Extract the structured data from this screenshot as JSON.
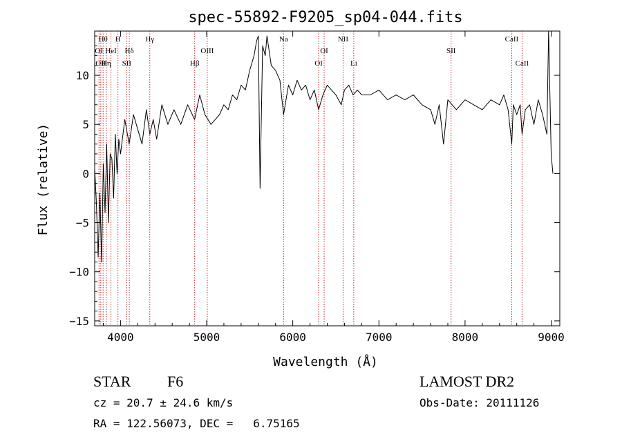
{
  "chart_data": {
    "type": "line",
    "title": "spec-55892-F9205_sp04-044.fits",
    "xlabel": "Wavelength (Å)",
    "ylabel": "Flux (relative)",
    "xlim": [
      3700,
      9100
    ],
    "ylim": [
      -15.5,
      14.5
    ],
    "xticks": [
      4000,
      5000,
      6000,
      7000,
      8000,
      9000
    ],
    "yticks": [
      -15,
      -10,
      -5,
      0,
      5,
      10
    ],
    "xtick_labels": [
      "4000",
      "5000",
      "6000",
      "7000",
      "8000",
      "9000"
    ],
    "ytick_labels": [
      "−15",
      "−10",
      "−5",
      "0",
      "5",
      "10"
    ],
    "grid": false,
    "line_color": "#000000",
    "marker_color": "#cc2222",
    "series": [
      {
        "values_x": [
          3700,
          3720,
          3740,
          3760,
          3780,
          3800,
          3820,
          3840,
          3860,
          3880,
          3900,
          3920,
          3940,
          3960,
          3980,
          4000,
          4050,
          4100,
          4150,
          4200,
          4250,
          4300,
          4340,
          4380,
          4420,
          4480,
          4550,
          4620,
          4700,
          4780,
          4860,
          4920,
          4980,
          5050,
          5100,
          5150,
          5200,
          5250,
          5300,
          5350,
          5400,
          5450,
          5500,
          5550,
          5580,
          5600,
          5620,
          5650,
          5680,
          5700,
          5750,
          5800,
          5850,
          5893,
          5950,
          6000,
          6050,
          6100,
          6150,
          6200,
          6250,
          6300,
          6350,
          6400,
          6450,
          6500,
          6563,
          6600,
          6650,
          6700,
          6750,
          6800,
          6900,
          7000,
          7100,
          7200,
          7300,
          7400,
          7500,
          7600,
          7650,
          7700,
          7750,
          7800,
          7850,
          7900,
          8000,
          8100,
          8200,
          8300,
          8400,
          8450,
          8500,
          8542,
          8560,
          8600,
          8640,
          8662,
          8700,
          8750,
          8800,
          8850,
          8900,
          8950,
          8970,
          9000,
          9020
        ],
        "values_y": [
          0.5,
          -3.0,
          -8.5,
          -2.0,
          -9.0,
          1.0,
          -4.0,
          3.0,
          -5.0,
          2.0,
          1.5,
          -2.5,
          4.0,
          0.0,
          3.5,
          2.0,
          5.5,
          3.0,
          6.0,
          4.5,
          3.0,
          6.5,
          4.0,
          5.5,
          3.5,
          7.0,
          5.0,
          6.5,
          5.0,
          7.0,
          5.5,
          8.0,
          6.0,
          5.0,
          5.5,
          6.0,
          7.0,
          6.5,
          8.0,
          7.5,
          9.0,
          8.5,
          10.5,
          12.0,
          13.5,
          14.0,
          -1.5,
          13.0,
          12.0,
          14.0,
          11.0,
          10.5,
          9.5,
          6.0,
          9.0,
          8.0,
          9.5,
          8.5,
          9.0,
          7.5,
          8.5,
          6.5,
          8.0,
          9.0,
          8.5,
          8.0,
          7.0,
          8.5,
          9.0,
          8.0,
          8.5,
          8.0,
          8.0,
          8.5,
          7.5,
          8.0,
          7.5,
          8.0,
          7.0,
          6.5,
          5.0,
          7.0,
          3.0,
          7.5,
          7.0,
          6.5,
          7.5,
          7.0,
          6.5,
          7.5,
          7.0,
          8.0,
          6.5,
          3.0,
          7.0,
          6.0,
          7.0,
          4.0,
          6.5,
          7.0,
          5.0,
          7.5,
          6.0,
          4.0,
          14.5,
          2.0,
          0.0
        ]
      }
    ],
    "lines": [
      {
        "x": 3750,
        "label": "OI",
        "row": 2
      },
      {
        "x": 3771,
        "label": "OII",
        "row": 3
      },
      {
        "x": 3798,
        "label": "Hθ",
        "row": 1
      },
      {
        "x": 3835,
        "label": "Hη",
        "row": 3
      },
      {
        "x": 3889,
        "label": "HeI",
        "row": 2
      },
      {
        "x": 3970,
        "label": "H",
        "row": 1
      },
      {
        "x": 4072,
        "label": "SII",
        "row": 3
      },
      {
        "x": 4102,
        "label": "Hδ",
        "row": 2
      },
      {
        "x": 4340,
        "label": "Hγ",
        "row": 1
      },
      {
        "x": 4861,
        "label": "Hβ",
        "row": 3
      },
      {
        "x": 5007,
        "label": "OIII",
        "row": 2
      },
      {
        "x": 5893,
        "label": "Na",
        "row": 1
      },
      {
        "x": 6300,
        "label": "OI",
        "row": 3
      },
      {
        "x": 6364,
        "label": "OI",
        "row": 2
      },
      {
        "x": 6584,
        "label": "NII",
        "row": 1
      },
      {
        "x": 6708,
        "label": "Li",
        "row": 3
      },
      {
        "x": 7838,
        "label": "SII",
        "row": 2
      },
      {
        "x": 8542,
        "label": "CaII",
        "row": 1
      },
      {
        "x": 8662,
        "label": "CaII",
        "row": 3
      }
    ]
  },
  "info": {
    "class": "STAR",
    "subclass": "F6",
    "cz": "cz = 20.7 ± 24.6 km/s",
    "coords": "RA = 122.56073, DEC =   6.75165",
    "survey": "LAMOST DR2",
    "obs_date": "Obs-Date: 20111126"
  }
}
